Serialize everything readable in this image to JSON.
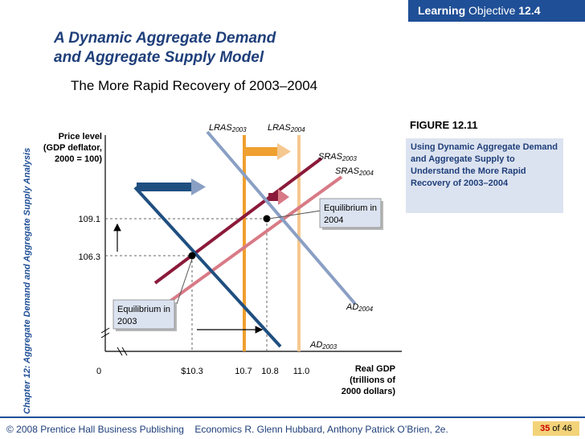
{
  "header": {
    "badge_bold": "Learning",
    "badge_text": "Objective",
    "badge_number": "12.4"
  },
  "sidebar_text": "Chapter 12:  Aggregate Demand and Aggregate Supply Analysis",
  "title": {
    "line1": "A Dynamic Aggregate Demand",
    "line2": "and Aggregate Supply Model"
  },
  "subtitle": "The More Rapid Recovery of 2003–2004",
  "figure": {
    "label": "FIGURE 12.11",
    "caption": "Using Dynamic Aggregate Demand and Aggregate Supply to Understand the More Rapid Recovery of 2003–2004"
  },
  "diagram": {
    "y_axis_label": [
      "Price level",
      "(GDP deflator,",
      "2000 = 100)"
    ],
    "x_axis_label": [
      "Real GDP",
      "(trillions of",
      "2000 dollars)"
    ],
    "price_ticks": [
      "109.1",
      "106.3"
    ],
    "gdp_ticks": [
      "0",
      "$10.3",
      "10.7",
      "10.8",
      "11.0"
    ],
    "curves": {
      "lras2003": {
        "base": "LRAS",
        "sub": "2003"
      },
      "lras2004": {
        "base": "LRAS",
        "sub": "2004"
      },
      "sras2003": {
        "base": "SRAS",
        "sub": "2003"
      },
      "sras2004": {
        "base": "SRAS",
        "sub": "2004"
      },
      "ad2004": {
        "base": "AD",
        "sub": "2004"
      },
      "ad2003": {
        "base": "AD",
        "sub": "2003"
      }
    },
    "callouts": {
      "eq2004": [
        "Equilibrium in",
        "2004"
      ],
      "eq2003": [
        "Equilibrium in",
        "2003"
      ]
    },
    "colors": {
      "lras2003": "#f0a030",
      "lras2004": "#f5c890",
      "sras2003": "#8b1a3a",
      "sras2004": "#d87a86",
      "ad2003": "#1f4f80",
      "ad2004": "#8a9fc4"
    }
  },
  "footer": {
    "publisher": "© 2008 Prentice Hall Business Publishing",
    "book": "Economics  R. Glenn Hubbard, Anthony Patrick O’Brien, 2e.",
    "page": "35",
    "of": "of 46"
  }
}
